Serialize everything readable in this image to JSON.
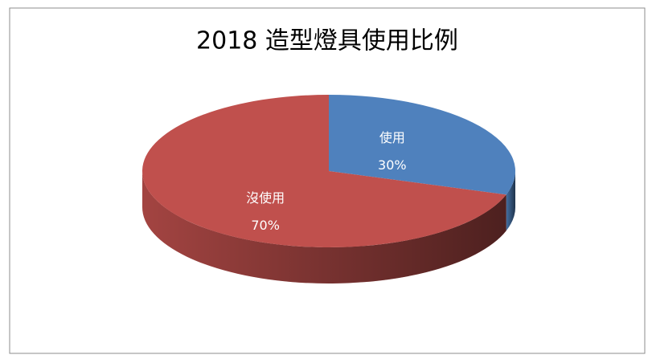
{
  "chart_data": {
    "type": "pie",
    "title": "2018 造型燈具使用比例",
    "categories": [
      "使用",
      "沒使用"
    ],
    "values": [
      30,
      70
    ],
    "value_labels": [
      "30%",
      "70%"
    ],
    "colors": [
      "#4f81bd",
      "#c0504d"
    ]
  }
}
